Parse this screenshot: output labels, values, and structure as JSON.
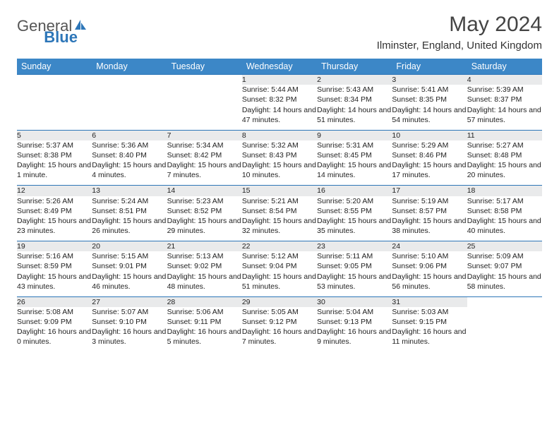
{
  "brand": {
    "part1": "General",
    "part2": "Blue"
  },
  "title": "May 2024",
  "location": "Ilminster, England, United Kingdom",
  "dayHeaders": [
    "Sunday",
    "Monday",
    "Tuesday",
    "Wednesday",
    "Thursday",
    "Friday",
    "Saturday"
  ],
  "colors": {
    "headerBg": "#3c87c7",
    "rowRule": "#2d76b8",
    "dayBg": "#e9eaeb",
    "brandBlue": "#2d76b8"
  },
  "weeks": [
    [
      null,
      null,
      null,
      {
        "n": "1",
        "sr": "5:44 AM",
        "ss": "8:32 PM",
        "dl": "14 hours and 47 minutes."
      },
      {
        "n": "2",
        "sr": "5:43 AM",
        "ss": "8:34 PM",
        "dl": "14 hours and 51 minutes."
      },
      {
        "n": "3",
        "sr": "5:41 AM",
        "ss": "8:35 PM",
        "dl": "14 hours and 54 minutes."
      },
      {
        "n": "4",
        "sr": "5:39 AM",
        "ss": "8:37 PM",
        "dl": "14 hours and 57 minutes."
      }
    ],
    [
      {
        "n": "5",
        "sr": "5:37 AM",
        "ss": "8:38 PM",
        "dl": "15 hours and 1 minute."
      },
      {
        "n": "6",
        "sr": "5:36 AM",
        "ss": "8:40 PM",
        "dl": "15 hours and 4 minutes."
      },
      {
        "n": "7",
        "sr": "5:34 AM",
        "ss": "8:42 PM",
        "dl": "15 hours and 7 minutes."
      },
      {
        "n": "8",
        "sr": "5:32 AM",
        "ss": "8:43 PM",
        "dl": "15 hours and 10 minutes."
      },
      {
        "n": "9",
        "sr": "5:31 AM",
        "ss": "8:45 PM",
        "dl": "15 hours and 14 minutes."
      },
      {
        "n": "10",
        "sr": "5:29 AM",
        "ss": "8:46 PM",
        "dl": "15 hours and 17 minutes."
      },
      {
        "n": "11",
        "sr": "5:27 AM",
        "ss": "8:48 PM",
        "dl": "15 hours and 20 minutes."
      }
    ],
    [
      {
        "n": "12",
        "sr": "5:26 AM",
        "ss": "8:49 PM",
        "dl": "15 hours and 23 minutes."
      },
      {
        "n": "13",
        "sr": "5:24 AM",
        "ss": "8:51 PM",
        "dl": "15 hours and 26 minutes."
      },
      {
        "n": "14",
        "sr": "5:23 AM",
        "ss": "8:52 PM",
        "dl": "15 hours and 29 minutes."
      },
      {
        "n": "15",
        "sr": "5:21 AM",
        "ss": "8:54 PM",
        "dl": "15 hours and 32 minutes."
      },
      {
        "n": "16",
        "sr": "5:20 AM",
        "ss": "8:55 PM",
        "dl": "15 hours and 35 minutes."
      },
      {
        "n": "17",
        "sr": "5:19 AM",
        "ss": "8:57 PM",
        "dl": "15 hours and 38 minutes."
      },
      {
        "n": "18",
        "sr": "5:17 AM",
        "ss": "8:58 PM",
        "dl": "15 hours and 40 minutes."
      }
    ],
    [
      {
        "n": "19",
        "sr": "5:16 AM",
        "ss": "8:59 PM",
        "dl": "15 hours and 43 minutes."
      },
      {
        "n": "20",
        "sr": "5:15 AM",
        "ss": "9:01 PM",
        "dl": "15 hours and 46 minutes."
      },
      {
        "n": "21",
        "sr": "5:13 AM",
        "ss": "9:02 PM",
        "dl": "15 hours and 48 minutes."
      },
      {
        "n": "22",
        "sr": "5:12 AM",
        "ss": "9:04 PM",
        "dl": "15 hours and 51 minutes."
      },
      {
        "n": "23",
        "sr": "5:11 AM",
        "ss": "9:05 PM",
        "dl": "15 hours and 53 minutes."
      },
      {
        "n": "24",
        "sr": "5:10 AM",
        "ss": "9:06 PM",
        "dl": "15 hours and 56 minutes."
      },
      {
        "n": "25",
        "sr": "5:09 AM",
        "ss": "9:07 PM",
        "dl": "15 hours and 58 minutes."
      }
    ],
    [
      {
        "n": "26",
        "sr": "5:08 AM",
        "ss": "9:09 PM",
        "dl": "16 hours and 0 minutes."
      },
      {
        "n": "27",
        "sr": "5:07 AM",
        "ss": "9:10 PM",
        "dl": "16 hours and 3 minutes."
      },
      {
        "n": "28",
        "sr": "5:06 AM",
        "ss": "9:11 PM",
        "dl": "16 hours and 5 minutes."
      },
      {
        "n": "29",
        "sr": "5:05 AM",
        "ss": "9:12 PM",
        "dl": "16 hours and 7 minutes."
      },
      {
        "n": "30",
        "sr": "5:04 AM",
        "ss": "9:13 PM",
        "dl": "16 hours and 9 minutes."
      },
      {
        "n": "31",
        "sr": "5:03 AM",
        "ss": "9:15 PM",
        "dl": "16 hours and 11 minutes."
      },
      null
    ]
  ],
  "labels": {
    "sunrise": "Sunrise:",
    "sunset": "Sunset:",
    "daylight": "Daylight:"
  }
}
